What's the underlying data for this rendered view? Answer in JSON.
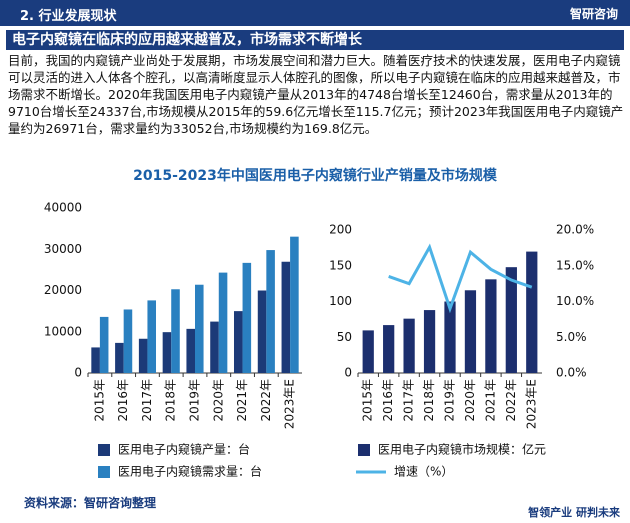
{
  "header": {
    "section": "2. 行业发展现状",
    "brand": "智研咨询"
  },
  "headline": "电子内窥镜在临床的应用越来越普及，市场需求不断增长",
  "paragraph": "目前，我国的内窥镜产业尚处于发展期，市场发展空间和潜力巨大。随着医疗技术的快速发展，医用电子内窥镜可以灵活的进入人体各个腔孔，以高清晰度显示人体腔孔的图像，所以电子内窥镜在临床的应用越来越普及，市场需求不断增长。2020年我国医用电子内窥镜产量从2013年的4748台增长至12460台，需求量从2013年的9710台增长至24337台,市场规模从2015年的59.6亿元增长至115.7亿元；预计2023年我国医用电子内窥镜产量约为26971台，需求量约为33052台,市场规模约为169.8亿元。",
  "figure_title": "2015-2023年中国医用电子内窥镜行业产销量及市场规模",
  "source": "资料来源：智研咨询整理",
  "slogan": "智领产业 研判未来",
  "chart_data": [
    {
      "type": "bar",
      "categories": [
        "2015年",
        "2016年",
        "2017年",
        "2018年",
        "2019年",
        "2020年",
        "2021年",
        "2022年",
        "2023年E"
      ],
      "series": [
        {
          "name": "医用电子内窥镜产量：台",
          "color": "#1c3a78",
          "values": [
            6200,
            7300,
            8300,
            9900,
            10700,
            12460,
            15000,
            20000,
            26971
          ]
        },
        {
          "name": "医用电子内窥镜需求量：台",
          "color": "#2a80c0",
          "values": [
            13600,
            15400,
            17600,
            20300,
            21400,
            24337,
            26700,
            29800,
            33052
          ]
        }
      ],
      "ylim": [
        0,
        40000
      ],
      "yticks": [
        0,
        10000,
        20000,
        30000,
        40000
      ]
    },
    {
      "type": "combo",
      "categories": [
        "2015年",
        "2016年",
        "2017年",
        "2018年",
        "2019年",
        "2020年",
        "2021年",
        "2022年",
        "2023年E"
      ],
      "series": [
        {
          "name": "医用电子内窥镜市场规模：亿元",
          "color": "#1c2f6e",
          "values": [
            59.6,
            67,
            76,
            88,
            100,
            115.7,
            131,
            148,
            169.8
          ]
        },
        {
          "name": "增速（%）",
          "color": "#4db3e6",
          "axis": "y2",
          "values": [
            null,
            13.5,
            12.5,
            17.6,
            9,
            16.9,
            14.5,
            13,
            12
          ]
        }
      ],
      "ylim": [
        0,
        200
      ],
      "yticks": [
        0,
        50,
        100,
        150,
        200
      ],
      "y2lim": [
        0,
        20
      ],
      "y2ticks": [
        {
          "value": 0,
          "label": "0.0%"
        },
        {
          "value": 5,
          "label": "5.0%"
        },
        {
          "value": 10,
          "label": "10.0%"
        },
        {
          "value": 15,
          "label": "15.0%"
        },
        {
          "value": 20,
          "label": "20.0%"
        }
      ]
    }
  ]
}
